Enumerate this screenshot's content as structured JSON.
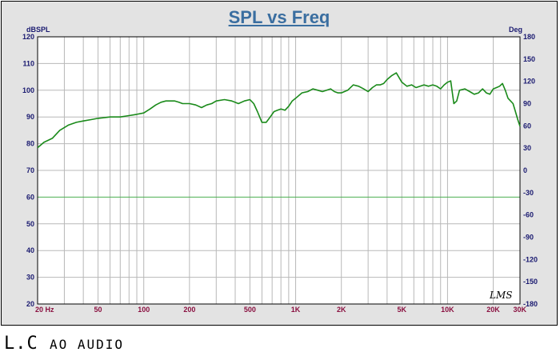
{
  "chart_data": {
    "type": "line",
    "title": "SPL vs Freq",
    "ylabel_left": "dBSPL",
    "ylabel_right": "Deg",
    "x_scale": "log",
    "xlim": [
      20,
      30000
    ],
    "ylim": [
      20,
      120
    ],
    "ylim_right": [
      -180,
      180
    ],
    "grid": true,
    "x_ticks": [
      20,
      50,
      100,
      200,
      500,
      1000,
      2000,
      5000,
      10000,
      20000,
      30000
    ],
    "x_tick_labels": [
      "20 Hz",
      "50",
      "100",
      "200",
      "500",
      "1K",
      "2K",
      "5K",
      "10K",
      "20K",
      "30K"
    ],
    "y_ticks": [
      20,
      30,
      40,
      50,
      60,
      70,
      80,
      90,
      100,
      110,
      120
    ],
    "y_tick_labels": [
      "20",
      "30",
      "40",
      "50",
      "60",
      "70",
      "80",
      "90",
      "100",
      "110",
      "120"
    ],
    "y_right_ticks": [
      -180,
      -150,
      -120,
      -90,
      -60,
      -30,
      0,
      30,
      60,
      90,
      120,
      150,
      180
    ],
    "y_right_tick_labels": [
      "-180",
      "-150",
      "-120",
      "-90",
      "-60",
      "-30",
      "0",
      "30",
      "60",
      "90",
      "120",
      "150",
      "180"
    ],
    "series": [
      {
        "color": "#1a8a1a",
        "x": [
          20,
          22,
          25,
          28,
          32,
          36,
          40,
          45,
          50,
          60,
          70,
          80,
          90,
          100,
          110,
          120,
          130,
          140,
          150,
          160,
          170,
          180,
          200,
          220,
          240,
          260,
          280,
          300,
          340,
          380,
          420,
          460,
          500,
          530,
          560,
          600,
          640,
          680,
          720,
          760,
          800,
          850,
          900,
          950,
          1000,
          1100,
          1200,
          1300,
          1400,
          1500,
          1600,
          1700,
          1800,
          1900,
          2000,
          2200,
          2400,
          2600,
          2800,
          3000,
          3200,
          3400,
          3600,
          3800,
          4000,
          4300,
          4600,
          5000,
          5400,
          5800,
          6200,
          6600,
          7000,
          7500,
          8000,
          8500,
          9000,
          9500,
          10000,
          10500,
          11000,
          11500,
          12000,
          13000,
          14000,
          15000,
          16000,
          17000,
          18000,
          19000,
          20000,
          21000,
          22000,
          23000,
          24000,
          25000,
          26000,
          27000,
          28000,
          29000,
          30000
        ],
        "y": [
          78.5,
          80.5,
          82,
          85,
          87,
          88,
          88.5,
          89,
          89.5,
          90,
          90,
          90.5,
          91,
          91.5,
          93,
          94.5,
          95.5,
          96,
          96,
          96,
          95.5,
          95,
          95,
          94.5,
          93.5,
          94.5,
          95,
          96,
          96.5,
          96,
          95,
          96,
          96.5,
          95,
          92,
          88,
          88,
          90,
          92,
          92.5,
          93,
          92.5,
          94,
          96,
          97,
          99,
          99.5,
          100.5,
          100,
          99.5,
          100,
          100.5,
          99.5,
          99,
          99,
          100,
          102,
          101.5,
          100.5,
          99.5,
          101,
          102,
          102,
          102.5,
          104,
          105.5,
          106.5,
          103,
          101.5,
          102,
          101,
          101.5,
          102,
          101.5,
          102,
          101.5,
          100.5,
          102,
          103,
          103.5,
          95,
          96,
          100,
          100.5,
          99.5,
          98.5,
          99,
          100.5,
          99,
          98.5,
          100.5,
          101,
          101.5,
          102.5,
          100,
          97,
          96,
          95,
          92,
          89,
          86.5
        ]
      }
    ]
  },
  "colors": {
    "background": "#e3e3e3",
    "plot_background": "#ffffff",
    "grid": "#b8b8b8",
    "zero_line": "#4caf50",
    "tick_label_left": "#1a1a70",
    "tick_label_bottom": "#8a1040",
    "tick_label_right": "#1a1a70",
    "title": "#3a6ea0"
  },
  "watermark": "LMS",
  "brand": {
    "main": "L.C",
    "sub": "AO AUDIO"
  }
}
